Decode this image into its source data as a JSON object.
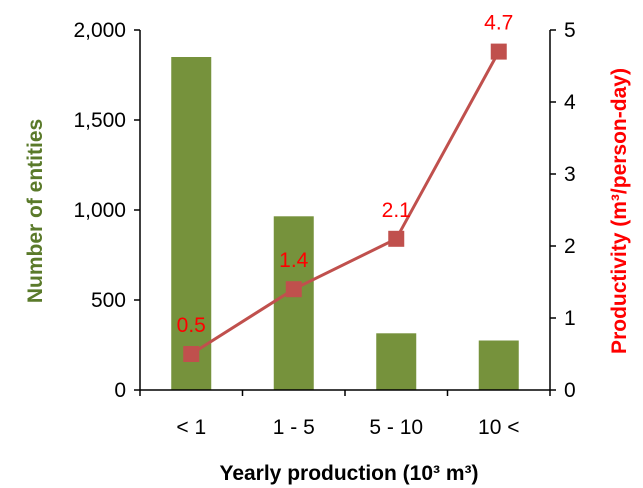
{
  "chart_data": {
    "type": "bar+line",
    "categories": [
      "< 1",
      "1 - 5",
      "5 - 10",
      "10 <"
    ],
    "bar_series": {
      "axis": "left",
      "values": [
        1850,
        965,
        315,
        275
      ],
      "color": "#76923c"
    },
    "line_series": {
      "axis": "right",
      "values": [
        0.5,
        1.4,
        2.1,
        4.7
      ],
      "labels": [
        "0.5",
        "1.4",
        "2.1",
        "4.7"
      ],
      "line_color": "#c0504d",
      "marker_color": "#c0504d",
      "label_color": "#ff0000"
    },
    "xlabel": "Yearly production (10³ m³)",
    "ylabel_left": "Number of entities",
    "ylabel_left_color": "#5a7a2a",
    "ylabel_right": "Productivity (m³/person-day)",
    "ylabel_right_color": "#ff0000",
    "ylim_left": [
      0,
      2000
    ],
    "ylim_right": [
      0,
      5
    ],
    "left_ticks": [
      "0",
      "500",
      "1,000",
      "1,500",
      "2,000"
    ],
    "left_tick_values": [
      0,
      500,
      1000,
      1500,
      2000
    ],
    "right_ticks": [
      "0",
      "1",
      "2",
      "3",
      "4",
      "5"
    ],
    "right_tick_values": [
      0,
      1,
      2,
      3,
      4,
      5
    ],
    "grid": false,
    "legend": "none"
  }
}
